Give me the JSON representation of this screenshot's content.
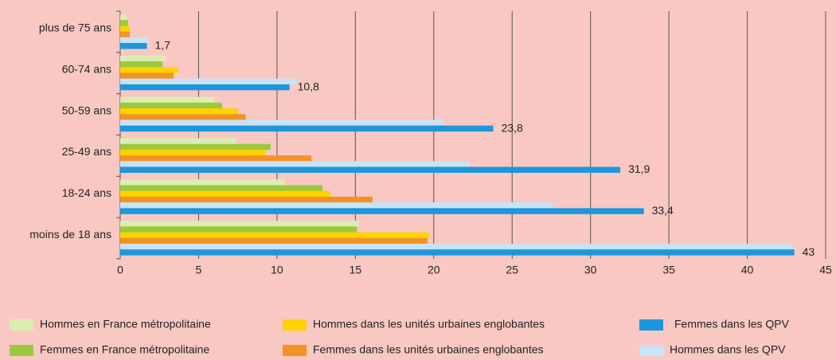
{
  "chart_data": {
    "type": "bar",
    "orientation": "horizontal",
    "categories": [
      "plus de 75 ans",
      "60-74 ans",
      "50-59 ans",
      "25-49 ans",
      "18-24 ans",
      "moins de 18 ans"
    ],
    "series": [
      {
        "name": "Hommes en France métropolitaine",
        "color": "#dbedb3",
        "values": [
          0.4,
          2.9,
          6.0,
          7.4,
          10.5,
          15.2
        ]
      },
      {
        "name": "Femmes en France métropolitaine",
        "color": "#9cc83e",
        "values": [
          0.5,
          2.7,
          6.5,
          9.6,
          12.9,
          15.1
        ]
      },
      {
        "name": "Hommes dans les unités urbaines englobantes",
        "color": "#ffd200",
        "values": [
          0.6,
          3.7,
          7.5,
          9.3,
          13.4,
          19.7
        ]
      },
      {
        "name": "Femmes dans les unités urbaines englobantes",
        "color": "#f39325",
        "values": [
          0.6,
          3.4,
          8.0,
          12.2,
          16.1,
          19.6
        ]
      },
      {
        "name": "Hommes dans les QPV",
        "color": "#c8e3f6",
        "values": [
          1.8,
          11.3,
          20.6,
          22.3,
          27.6,
          42.9
        ]
      },
      {
        "name": "Femmes dans les QPV",
        "color": "#1e96dc",
        "values": [
          1.7,
          10.8,
          23.8,
          31.9,
          33.4,
          43
        ],
        "value_labels": [
          "1,7",
          "10,8",
          "23,8",
          "31,9",
          "33,4",
          "43"
        ]
      }
    ],
    "xlim": [
      0,
      45
    ],
    "xticks": [
      0,
      5,
      10,
      15,
      20,
      25,
      30,
      35,
      40,
      45
    ],
    "grid": true
  }
}
